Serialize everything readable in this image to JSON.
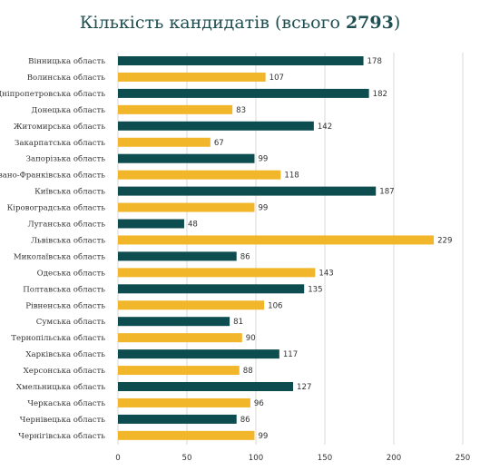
{
  "title": {
    "main": "Кількість кандидатів (всього ",
    "total": "2793",
    "close": ")"
  },
  "colors": {
    "dark": "#0e4d4f",
    "yellow": "#f2b62b",
    "grid": "#d9d9d9"
  },
  "chart_data": {
    "type": "bar",
    "orientation": "horizontal",
    "title": "Кількість кандидатів (всього 2793)",
    "categories": [
      "Вінницька область",
      "Волинська область",
      "Дніпропетровська область",
      "Донецька область",
      "Житомирська область",
      "Закарпатська область",
      "Запорізька область",
      "Івано-Франківська область",
      "Київська область",
      "Кіровоградська область",
      "Луганська область",
      "Львівська область",
      "Миколаївська область",
      "Одеська область",
      "Полтавська область",
      "Рівненська область",
      "Сумська область",
      "Тернопільська область",
      "Харківська область",
      "Херсонська область",
      "Хмельницька область",
      "Черкаська область",
      "Чернівецька область",
      "Чернігівська область"
    ],
    "values": [
      178,
      107,
      182,
      83,
      142,
      67,
      99,
      118,
      187,
      99,
      48,
      229,
      86,
      143,
      135,
      106,
      81,
      90,
      117,
      88,
      127,
      96,
      86,
      99
    ],
    "bar_colors": [
      "dark",
      "yellow",
      "dark",
      "yellow",
      "dark",
      "yellow",
      "dark",
      "yellow",
      "dark",
      "yellow",
      "dark",
      "yellow",
      "dark",
      "yellow",
      "dark",
      "yellow",
      "dark",
      "yellow",
      "dark",
      "yellow",
      "dark",
      "yellow",
      "dark",
      "yellow"
    ],
    "xlim": [
      0,
      250
    ],
    "xticks": [
      0,
      50,
      100,
      150,
      200,
      250
    ],
    "grid": true
  }
}
